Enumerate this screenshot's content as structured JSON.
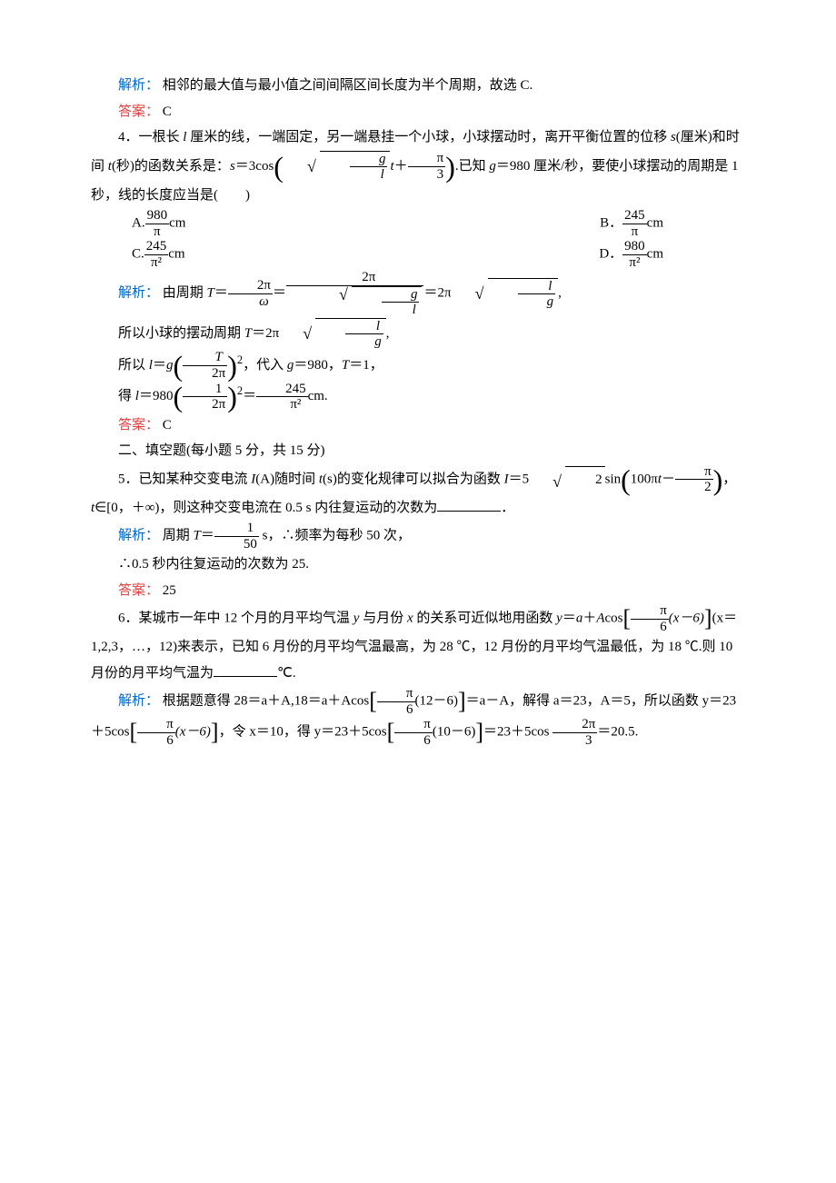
{
  "q3": {
    "exp_label": "解析：",
    "exp": "相邻的最大值与最小值之间间隔区间长度为半个周期，故选 C.",
    "ans_label": "答案：",
    "ans": "C"
  },
  "q4": {
    "stem1": "4．一根长 ",
    "stem2": " 厘米的线，一端固定，另一端悬挂一个小球，小球摆动时，离开平衡位置的位移 ",
    "stem3": "(厘米)和时间 ",
    "stem4": "(秒)的函数关系是：",
    "func_prefix": "＝3cos",
    "g_val": "980",
    "stem5": ".已知 ",
    "stem6": "＝980 厘米/秒，要使小球摆动的周期是 1 秒，线的长度应当是(　　)",
    "choices": {
      "A": {
        "label": "A.",
        "num": "980",
        "den": "π",
        "unit": "cm"
      },
      "B": {
        "label": "B．",
        "num": "245",
        "den": "π",
        "unit": "cm"
      },
      "C": {
        "label": "C.",
        "num": "245",
        "den": "π²",
        "unit": "cm"
      },
      "D": {
        "label": "D．",
        "num": "980",
        "den": "π²",
        "unit": "cm"
      }
    },
    "exp_label": "解析：",
    "exp1a": "由周期 ",
    "exp1b": "＝",
    "exp1c": "＝",
    "exp1d": "＝2π",
    "exp2a": "所以小球的摆动周期 ",
    "exp2b": "＝2π",
    "exp3a": "所以 ",
    "exp3b": "＝",
    "exp3c": "，代入 ",
    "exp3d": "＝980，",
    "exp3e": "＝1，",
    "exp4a": "得 ",
    "exp4b": "＝980",
    "exp4c": "＝",
    "exp4d": "cm.",
    "frac_2pi": {
      "num": "2π"
    },
    "frac_T2pi": {
      "num": "T",
      "den": "2π"
    },
    "frac_12pi": {
      "num": "1",
      "den": "2π"
    },
    "frac_245pi2": {
      "num": "245",
      "den": "π²"
    },
    "ans_label": "答案：",
    "ans": "C"
  },
  "section2": "二、填空题(每小题 5 分，共 15 分)",
  "q5": {
    "stem1": "5．已知某种交变电流 ",
    "stem2": "(A)随时间 ",
    "stem3": "(s)的变化规律可以拟合为函数 ",
    "stem4": "＝5",
    "stem4b": "sin",
    "inside1": "100π",
    "inside2": "－",
    "stem5": "，",
    "stem6": "∈[0，＋∞)，则这种交变电流在 0.5 s 内往复运动的次数为",
    "stem7": "．",
    "exp_label": "解析：",
    "exp1a": "周期 ",
    "exp1b": "＝",
    "exp1_num": "1",
    "exp1_den": "50",
    "exp1c": " s，∴频率为每秒 50 次，",
    "exp2": "∴0.5 秒内往复运动的次数为 25.",
    "ans_label": "答案：",
    "ans": "25"
  },
  "q6": {
    "stem1": "6．某城市一年中 12 个月的月平均气温 ",
    "stem2": " 与月份 ",
    "stem3": " 的关系可近似地用函数 ",
    "stem4": "＝",
    "stem5": "＋",
    "stem6": "cos",
    "frac_pi6": {
      "num": "π",
      "den": "6"
    },
    "inside": "(x－6)",
    "stem7": "(x＝1,2,3，…，12)来表示，已知 6 月份的月平均气温最高，为 28 ℃，12 月份的月平均气温最低，为 18 ℃.则 10 月份的月平均气温为",
    "stem8": "℃.",
    "exp_label": "解析：",
    "exp1": "根据题意得 28＝a＋A,18＝a＋Acos",
    "exp1b": "(12－6)",
    "exp1c": "＝a－A，解得 a＝23，A＝5，所以函数 y＝23＋5cos",
    "exp2a": "(x－6)",
    "exp2b": "，令 x＝10，得 y＝23＋5cos",
    "exp2c": "(10－6)",
    "exp2d": "＝23＋5cos",
    "frac_2pi3": {
      "num": "2π",
      "den": "3"
    },
    "exp2e": "＝20.5."
  },
  "vars": {
    "l": "l",
    "s": "s",
    "t": "t",
    "g": "g",
    "T": "T",
    "I": "I",
    "y": "y",
    "x": "x",
    "a": "a",
    "A": "A",
    "omega": "ω",
    "pi2": {
      "num": "π",
      "den": "2"
    },
    "pi3": {
      "num": "π",
      "den": "3"
    },
    "sqrt2": "2",
    "sq": "2"
  }
}
